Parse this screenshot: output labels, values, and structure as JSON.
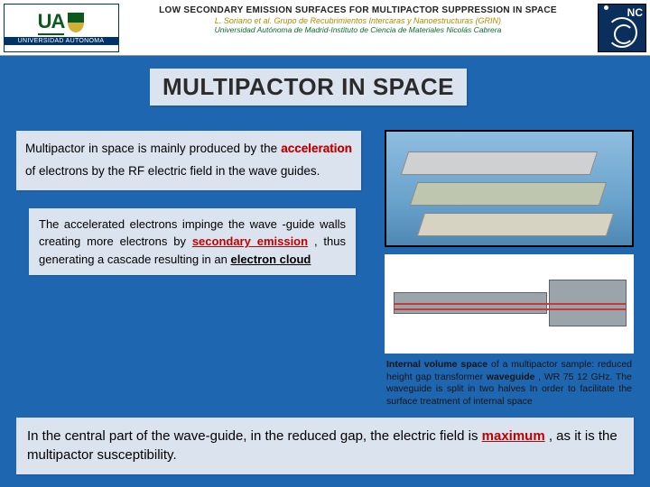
{
  "colors": {
    "page_bg": "#1f66b0",
    "panel_bg": "#dbe3ee",
    "accent_red": "#c00000",
    "header_green": "#0a6b2f",
    "header_gold": "#b48a00",
    "inc_bg": "#0b2f5c"
  },
  "header": {
    "uam_letters": "UA",
    "uam_bottom": "UNIVERSIDAD AUTONOMA",
    "title": "LOW SECONDARY EMISSION SURFACES  FOR MULTIPACTOR SUPPRESSION IN SPACE",
    "authors": "L. Soriano et al. Grupo de Recubrimientos Intercaras y Nanoestructuras (GRIN)",
    "affiliation": "Universidad Autónoma de Madrid-Instituto de Ciencia de Materiales Nicolás Cabrera",
    "inc_label": "NC"
  },
  "title_bar": "MULTIPACTOR IN SPACE",
  "intro": {
    "pre": "Multipactor in space is mainly  produced by the ",
    "accel": "acceleration",
    "post": " of electrons by the RF electric field in the wave guides."
  },
  "secondary": {
    "l1": "The accelerated electrons impinge the wave -guide walls creating more electrons by ",
    "sec": "secondary emission",
    "l2": ", thus generating a cascade resulting in an ",
    "cloud": "electron cloud"
  },
  "caption": {
    "b1": "Internal volume space",
    "t1": " of a multipactor sample: reduced height gap transformer ",
    "b2": "waveguide",
    "t2": ", WR 75 12 GHz. The waveguide is split in two halves In order to facilitate the surface treatment of internal space"
  },
  "bottom": {
    "pre": "In the central part of the wave-guide, in the reduced  gap, the electric field is ",
    "max": "maximum",
    "post": ", as it is the multipactor susceptibility."
  }
}
